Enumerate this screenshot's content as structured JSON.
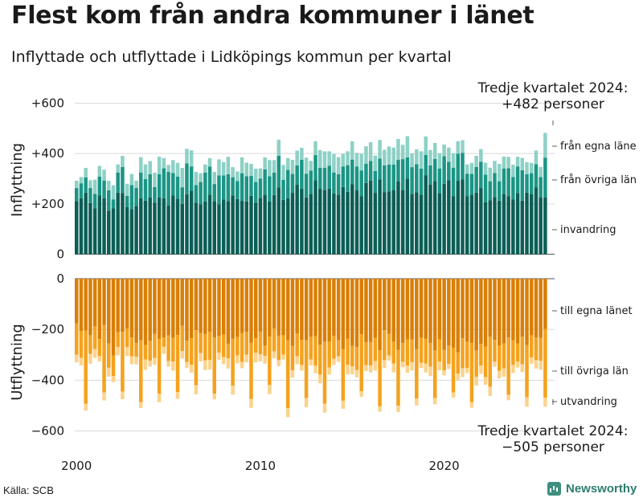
{
  "title": "Flest kom från andra kommuner i länet",
  "subtitle": "Inflyttade och utflyttade i Lidköpings kommun per kvartal",
  "source": "Källa: SCB",
  "brand": "Newsworthy",
  "chart_data": [
    {
      "type": "bar",
      "stacked": true,
      "ylabel": "Inflyttning",
      "ylim": [
        0,
        600
      ],
      "yticks": [
        0,
        200,
        400,
        600
      ],
      "ytick_labels": [
        "0",
        "+200",
        "+400",
        "+600"
      ],
      "annotation": "Tredje kvartalet 2024:\n+482 personer",
      "series": [
        {
          "name": "från egna läne",
          "color": "#0b5e55",
          "values": [
            211,
            222,
            245,
            203,
            183,
            233,
            222,
            173,
            183,
            245,
            243,
            188,
            179,
            192,
            222,
            213,
            225,
            205,
            226,
            222,
            193,
            233,
            221,
            200,
            238,
            252,
            205,
            198,
            210,
            237,
            211,
            199,
            218,
            211,
            234,
            219,
            212,
            210,
            232,
            204,
            224,
            237,
            209,
            235,
            265,
            216,
            222,
            244,
            276,
            260,
            226,
            240,
            294,
            260,
            255,
            261,
            242,
            236,
            267,
            248,
            279,
            255,
            231,
            283,
            293,
            244,
            298,
            247,
            250,
            256,
            290,
            256,
            301,
            240,
            246,
            236,
            314,
            276,
            291,
            243,
            280,
            294,
            231,
            293,
            297,
            231,
            237,
            245,
            263,
            206,
            215,
            227,
            213,
            240,
            231,
            217,
            243,
            213,
            245,
            239,
            265,
            225,
            226
          ]
        },
        {
          "name": "från övriga län",
          "color": "#1b9585",
          "values": [
            52,
            60,
            60,
            60,
            57,
            75,
            71,
            81,
            35,
            80,
            104,
            44,
            96,
            72,
            103,
            86,
            93,
            62,
            92,
            120,
            134,
            90,
            87,
            66,
            123,
            97,
            70,
            89,
            114,
            111,
            68,
            114,
            95,
            107,
            72,
            72,
            110,
            100,
            79,
            83,
            77,
            100,
            101,
            89,
            126,
            80,
            113,
            75,
            77,
            115,
            94,
            92,
            100,
            83,
            88,
            91,
            83,
            82,
            82,
            106,
            97,
            94,
            102,
            76,
            78,
            87,
            82,
            106,
            106,
            100,
            85,
            122,
            84,
            106,
            112,
            104,
            81,
            77,
            88,
            98,
            110,
            73,
            113,
            106,
            106,
            89,
            82,
            102,
            104,
            110,
            75,
            96,
            77,
            101,
            111,
            90,
            106,
            121,
            73,
            83,
            93,
            82,
            158
          ]
        },
        {
          "name": "invandring",
          "color": "#8ed1c6",
          "values": [
            29,
            25,
            38,
            31,
            56,
            43,
            43,
            38,
            56,
            32,
            44,
            48,
            44,
            28,
            61,
            58,
            52,
            57,
            70,
            40,
            28,
            51,
            55,
            77,
            58,
            64,
            52,
            35,
            33,
            34,
            48,
            64,
            53,
            69,
            40,
            38,
            63,
            54,
            48,
            53,
            40,
            48,
            64,
            50,
            64,
            59,
            47,
            56,
            59,
            48,
            64,
            39,
            55,
            71,
            66,
            57,
            73,
            68,
            50,
            55,
            73,
            54,
            66,
            70,
            74,
            61,
            74,
            62,
            72,
            68,
            83,
            57,
            84,
            54,
            59,
            69,
            73,
            61,
            63,
            60,
            46,
            57,
            58,
            50,
            50,
            37,
            44,
            44,
            51,
            48,
            54,
            48,
            69,
            47,
            45,
            49,
            38,
            49,
            48,
            41,
            54,
            40,
            98
          ]
        }
      ]
    },
    {
      "type": "bar",
      "stacked": true,
      "ylabel": "Utflyttning",
      "ylim": [
        -700,
        0
      ],
      "yticks": [
        0,
        -200,
        -400,
        -600
      ],
      "ytick_labels": [
        "0",
        "−200",
        "−400",
        "−600"
      ],
      "annotation": "Tredje kvartalet 2024:\n−505 personer",
      "series": [
        {
          "name": "till egna länet",
          "color": "#d97f06",
          "values": [
            -176,
            -206,
            -204,
            -223,
            -188,
            -238,
            -183,
            -255,
            -303,
            -211,
            -210,
            -196,
            -232,
            -253,
            -242,
            -261,
            -245,
            -217,
            -238,
            -232,
            -224,
            -233,
            -222,
            -186,
            -244,
            -235,
            -203,
            -214,
            -218,
            -210,
            -232,
            -225,
            -221,
            -257,
            -236,
            -230,
            -214,
            -210,
            -253,
            -235,
            -210,
            -264,
            -228,
            -196,
            -225,
            -224,
            -242,
            -265,
            -216,
            -241,
            -242,
            -229,
            -227,
            -260,
            -249,
            -248,
            -225,
            -242,
            -277,
            -236,
            -265,
            -270,
            -219,
            -251,
            -250,
            -233,
            -282,
            -203,
            -217,
            -249,
            -281,
            -254,
            -240,
            -239,
            -277,
            -233,
            -237,
            -253,
            -284,
            -239,
            -281,
            -263,
            -272,
            -290,
            -235,
            -247,
            -254,
            -283,
            -257,
            -268,
            -229,
            -241,
            -263,
            -255,
            -232,
            -243,
            -255,
            -228,
            -262,
            -224,
            -231,
            -233,
            -198
          ]
        },
        {
          "name": "till övriga län",
          "color": "#f4a21e",
          "values": [
            -124,
            -106,
            -289,
            -73,
            -89,
            -66,
            -265,
            -96,
            -81,
            -58,
            -235,
            -73,
            -74,
            -55,
            -245,
            -58,
            -78,
            -95,
            -215,
            -36,
            -101,
            -94,
            -225,
            -99,
            -85,
            -104,
            -217,
            -79,
            -104,
            -110,
            -221,
            -67,
            -88,
            -57,
            -186,
            -73,
            -114,
            -90,
            -221,
            -57,
            -88,
            -40,
            -191,
            -91,
            -96,
            -75,
            -268,
            -96,
            -90,
            -99,
            -229,
            -90,
            -116,
            -118,
            -244,
            -102,
            -91,
            -64,
            -204,
            -104,
            -80,
            -90,
            -225,
            -90,
            -92,
            -92,
            -221,
            -118,
            -86,
            -86,
            -220,
            -74,
            -103,
            -90,
            -195,
            -98,
            -97,
            -94,
            -186,
            -88,
            -80,
            -73,
            -176,
            -84,
            -118,
            -105,
            -233,
            -103,
            -85,
            -120,
            -197,
            -86,
            -100,
            -99,
            -226,
            -97,
            -72,
            -110,
            -205,
            -86,
            -90,
            -91,
            -271
          ]
        },
        {
          "name": "utvandring",
          "color": "#fbd38d",
          "values": [
            -30,
            -30,
            -27,
            -39,
            -35,
            -22,
            -32,
            -35,
            -24,
            -33,
            -30,
            -36,
            -31,
            -30,
            -23,
            -40,
            -23,
            -28,
            -34,
            -28,
            -22,
            -36,
            -27,
            -29,
            -23,
            -31,
            -36,
            -33,
            -38,
            -38,
            -23,
            -28,
            -28,
            -40,
            -35,
            -31,
            -25,
            -30,
            -35,
            -38,
            -28,
            -31,
            -36,
            -27,
            -24,
            -20,
            -36,
            -29,
            -31,
            -22,
            -36,
            -23,
            -30,
            -34,
            -35,
            -28,
            -24,
            -22,
            -32,
            -37,
            -32,
            -29,
            -22,
            -23,
            -28,
            -37,
            -21,
            -31,
            -20,
            -34,
            -25,
            -21,
            -28,
            -33,
            -28,
            -21,
            -36,
            -37,
            -25,
            -34,
            -20,
            -20,
            -21,
            -28,
            -35,
            -20,
            -22,
            -35,
            -33,
            -30,
            -36,
            -20,
            -30,
            -33,
            -21,
            -32,
            -23,
            -30,
            -38,
            -25,
            -33,
            -35,
            -36
          ]
        }
      ]
    }
  ],
  "x_axis": {
    "start_year": 2000,
    "tick_labels": [
      "2000",
      "2010",
      "2020"
    ]
  }
}
